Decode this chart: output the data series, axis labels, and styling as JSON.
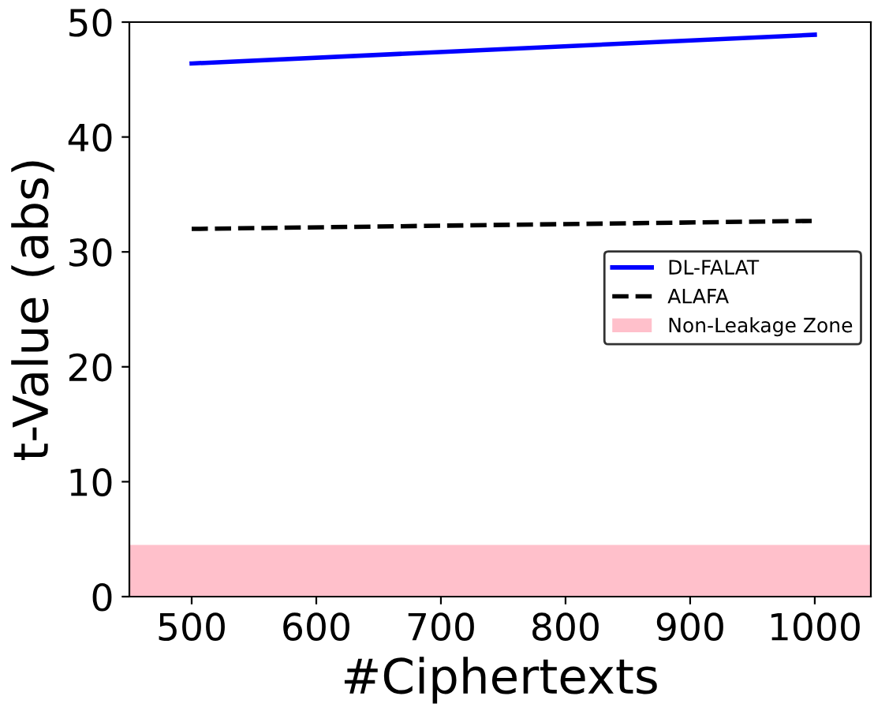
{
  "chart_data": {
    "type": "line",
    "xlabel": "#Ciphertexts",
    "ylabel": "t-Value (abs)",
    "x": [
      500,
      1000
    ],
    "series": [
      {
        "name": "DL-FALAT",
        "color": "#0000ff",
        "values": [
          46.4,
          48.9
        ],
        "line_style": "solid"
      },
      {
        "name": "ALAFA",
        "color": "#000000",
        "values": [
          32.0,
          32.7
        ],
        "line_style": "dashed"
      }
    ],
    "bands": [
      {
        "axis": "y",
        "from": 0,
        "to": 4.5,
        "label": "Non-Leakage Zone",
        "color": "#ffc0cb"
      }
    ],
    "xlim": [
      450,
      1045
    ],
    "xticks": [
      500,
      600,
      700,
      800,
      900,
      1000
    ],
    "ylim": [
      0,
      50
    ],
    "yticks": [
      0,
      10,
      20,
      30,
      40,
      50
    ],
    "grid": false,
    "legend": "right",
    "marker": "none"
  }
}
